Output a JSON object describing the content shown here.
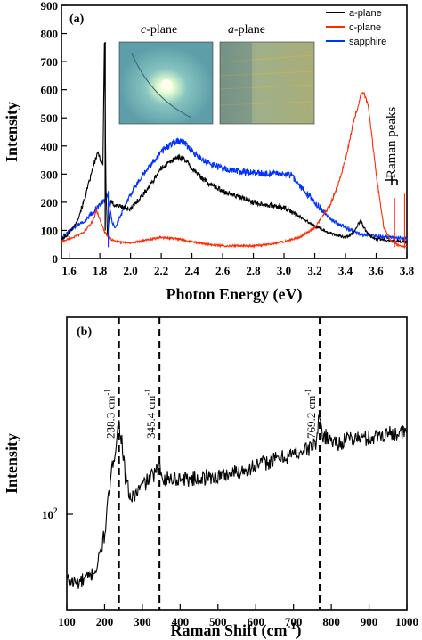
{
  "figure": {
    "panel_a_label": "(a)",
    "panel_b_label": "(b)",
    "inset_left_title_italic": "c",
    "inset_left_title_rest": "-plane",
    "inset_right_title_italic": "a",
    "inset_right_title_rest": "-plane",
    "raman_peaks_label": "Raman peaks"
  },
  "chart_data": [
    {
      "type": "line",
      "panel": "(a)",
      "xlabel": "Photon Energy (eV)",
      "ylabel": "Intensity",
      "xlim": [
        1.55,
        3.8
      ],
      "ylim": [
        0,
        900
      ],
      "x_ticks": [
        "1.6",
        "1.8",
        "2.0",
        "2.2",
        "2.4",
        "2.6",
        "2.8",
        "3.0",
        "3.2",
        "3.4",
        "3.6",
        "3.8"
      ],
      "y_ticks": [
        "0",
        "100",
        "200",
        "300",
        "400",
        "500",
        "600",
        "700",
        "800",
        "900"
      ],
      "legend_position": "top-right",
      "series": [
        {
          "name": "a-plane",
          "color": "#000000",
          "x": [
            1.55,
            1.6,
            1.65,
            1.7,
            1.74,
            1.77,
            1.79,
            1.8,
            1.82,
            1.83,
            1.84,
            1.85,
            1.87,
            1.9,
            2.0,
            2.1,
            2.2,
            2.3,
            2.35,
            2.4,
            2.5,
            2.6,
            2.7,
            2.8,
            2.9,
            3.0,
            3.1,
            3.2,
            3.3,
            3.4,
            3.45,
            3.48,
            3.5,
            3.52,
            3.55,
            3.6,
            3.7,
            3.8
          ],
          "y": [
            65,
            90,
            130,
            210,
            290,
            350,
            375,
            360,
            330,
            770,
            250,
            80,
            200,
            190,
            175,
            240,
            320,
            360,
            355,
            320,
            270,
            240,
            220,
            200,
            190,
            180,
            150,
            115,
            90,
            75,
            90,
            120,
            135,
            110,
            85,
            70,
            62,
            60
          ]
        },
        {
          "name": "c-plane",
          "color": "#ff2a00",
          "x": [
            1.55,
            1.6,
            1.65,
            1.7,
            1.75,
            1.78,
            1.8,
            1.83,
            1.87,
            1.9,
            2.0,
            2.1,
            2.2,
            2.3,
            2.4,
            2.5,
            2.6,
            2.7,
            2.8,
            2.9,
            3.0,
            3.1,
            3.2,
            3.3,
            3.35,
            3.4,
            3.45,
            3.5,
            3.52,
            3.55,
            3.6,
            3.65,
            3.7,
            3.75,
            3.8
          ],
          "y": [
            60,
            70,
            80,
            95,
            130,
            170,
            140,
            95,
            70,
            60,
            55,
            65,
            75,
            70,
            60,
            50,
            45,
            45,
            45,
            50,
            60,
            75,
            110,
            190,
            260,
            350,
            480,
            580,
            590,
            540,
            300,
            110,
            60,
            45,
            40
          ]
        },
        {
          "name": "sapphire",
          "color": "#0033ff",
          "x": [
            1.55,
            1.6,
            1.65,
            1.7,
            1.75,
            1.8,
            1.83,
            1.85,
            1.88,
            1.9,
            2.0,
            2.1,
            2.2,
            2.3,
            2.35,
            2.4,
            2.5,
            2.6,
            2.7,
            2.8,
            2.9,
            3.0,
            3.05,
            3.1,
            3.2,
            3.3,
            3.4,
            3.5,
            3.6,
            3.7,
            3.8
          ],
          "y": [
            75,
            95,
            120,
            130,
            160,
            190,
            210,
            230,
            130,
            110,
            230,
            310,
            380,
            420,
            415,
            380,
            340,
            320,
            310,
            305,
            300,
            300,
            295,
            260,
            200,
            140,
            110,
            85,
            80,
            75,
            70
          ]
        }
      ]
    },
    {
      "type": "line",
      "panel": "(b)",
      "xlabel": "Raman Shift (cm",
      "xlabel_sup": "-1",
      "xlabel_end": ")",
      "ylabel": "Intensity",
      "xlim": [
        100,
        1000
      ],
      "y_scale": "log",
      "y_ticks": [
        "10"
      ],
      "y_tick_sup": "2",
      "x_ticks": [
        "100",
        "200",
        "300",
        "400",
        "500",
        "600",
        "700",
        "800",
        "900",
        "1000"
      ],
      "annotations": [
        {
          "text": "238.3 cm",
          "sup": "-1",
          "x": 238.3
        },
        {
          "text": "345.4 cm",
          "sup": "-1",
          "x": 345.4
        },
        {
          "text": "769.2 cm",
          "sup": "-1",
          "x": 769.2
        }
      ],
      "series": [
        {
          "color": "#000000",
          "x": [
            100,
            130,
            160,
            180,
            200,
            215,
            230,
            238,
            245,
            255,
            270,
            285,
            300,
            320,
            345,
            360,
            400,
            450,
            500,
            550,
            600,
            650,
            700,
            740,
            760,
            769,
            775,
            790,
            820,
            850,
            900,
            950,
            1000
          ],
          "y": [
            55,
            54,
            56,
            60,
            75,
            105,
            140,
            160,
            145,
            110,
            95,
            100,
            105,
            110,
            118,
            110,
            110,
            110,
            112,
            115,
            120,
            125,
            130,
            135,
            140,
            170,
            150,
            145,
            140,
            145,
            145,
            150,
            150
          ]
        }
      ]
    }
  ]
}
